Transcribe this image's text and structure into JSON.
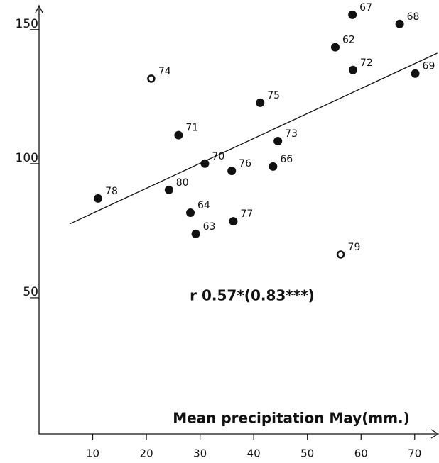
{
  "chart_data": {
    "type": "scatter",
    "x_label": "Mean precipitation  May(mm.)",
    "annotation": "r 0.57*(0.83***)",
    "xlim": [
      0,
      74
    ],
    "ylim": [
      0,
      160
    ],
    "xticks": [
      10,
      20,
      30,
      40,
      50,
      60,
      70
    ],
    "yticks": [
      50,
      100,
      150
    ],
    "color": "#111111",
    "series": [
      {
        "hollow": false,
        "x": [
          58.4,
          67.2,
          55.2,
          58.5,
          70.1,
          41.2,
          26.0,
          44.5,
          30.9,
          35.9,
          43.6,
          11.0,
          24.2,
          28.2,
          36.2,
          29.2
        ],
        "values": [
          155.0,
          151.6,
          142.9,
          134.4,
          133.1,
          122.2,
          110.1,
          107.9,
          99.5,
          96.8,
          98.4,
          86.5,
          89.7,
          81.2,
          78.0,
          73.3
        ],
        "labels": [
          "67",
          "68",
          "62",
          "72",
          "69",
          "75",
          "71",
          "73",
          "70",
          "76",
          "66",
          "78",
          "80",
          "64",
          "77",
          "63"
        ]
      },
      {
        "hollow": true,
        "x": [
          20.9,
          56.2
        ],
        "values": [
          131.2,
          65.6
        ],
        "labels": [
          "74",
          "79"
        ]
      }
    ],
    "trend_line": {
      "x": [
        5.7,
        74.2
      ],
      "values": [
        77.0,
        140.7
      ]
    }
  }
}
